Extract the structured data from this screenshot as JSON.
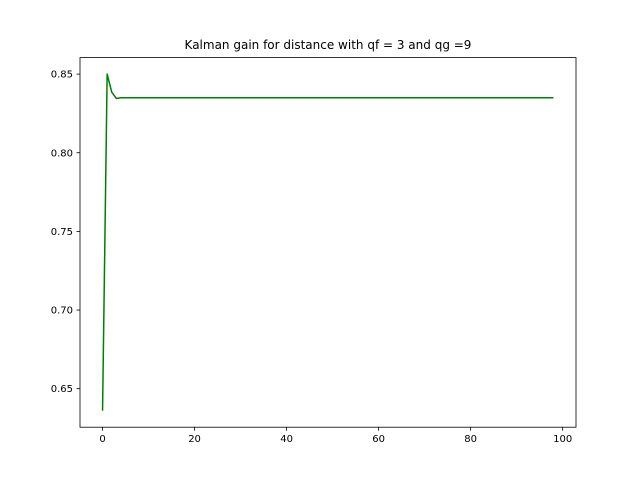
{
  "chart_data": {
    "type": "line",
    "title": "Kalman gain for distance with qf = 3 and qg =9",
    "xlabel": "",
    "ylabel": "",
    "xlim": [
      -4.9,
      102.9
    ],
    "ylim": [
      0.6255,
      0.8605
    ],
    "xticks": [
      0,
      20,
      40,
      60,
      80,
      100
    ],
    "xtick_labels": [
      "0",
      "20",
      "40",
      "60",
      "80",
      "100"
    ],
    "yticks": [
      0.65,
      0.7,
      0.75,
      0.8,
      0.85
    ],
    "ytick_labels": [
      "0.65",
      "0.70",
      "0.75",
      "0.80",
      "0.85"
    ],
    "grid": false,
    "legend": "none",
    "series": [
      {
        "color": "#008000",
        "x": [
          0,
          1,
          2,
          3,
          4,
          98
        ],
        "y": [
          0.636,
          0.85,
          0.8385,
          0.8345,
          0.835,
          0.835
        ]
      }
    ]
  }
}
